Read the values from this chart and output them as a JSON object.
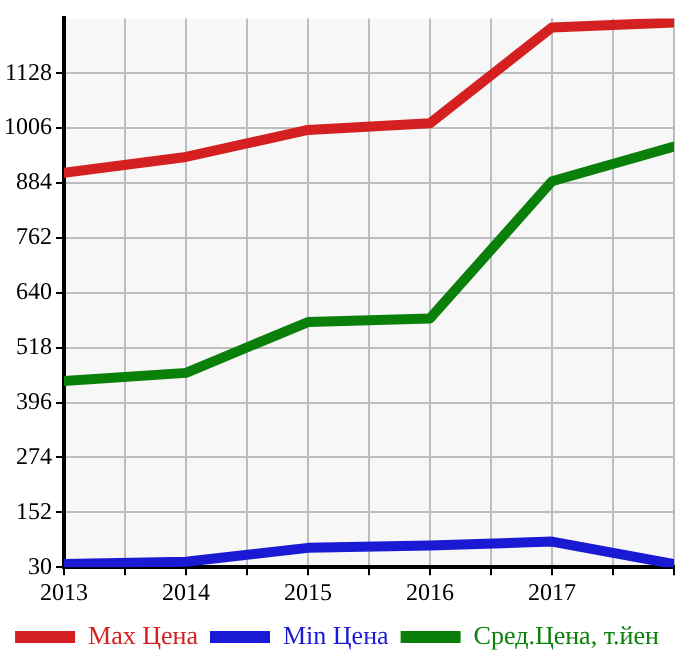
{
  "chart_data": {
    "type": "line",
    "x": [
      2013,
      2014,
      2015,
      2016,
      2017,
      2018
    ],
    "series": [
      {
        "name": "Max Цена",
        "color": "#d42020",
        "values": [
          907,
          942,
          1002,
          1017,
          1230,
          1241
        ]
      },
      {
        "name": "Min Цена",
        "color": "#1a1ad4",
        "values": [
          37,
          42,
          73,
          78,
          87,
          37
        ]
      },
      {
        "name": "Сред.Цена, т.йен",
        "color": "#0a800a",
        "values": [
          444,
          462,
          575,
          583,
          888,
          965
        ]
      }
    ],
    "xlim": [
      2013,
      2018
    ],
    "xticks": [
      2013,
      {
        "value": 2013.5,
        "label": null
      },
      2014,
      {
        "value": 2014.5,
        "label": null
      },
      2015,
      {
        "value": 2015.5,
        "label": null
      },
      2016,
      {
        "value": 2016.5,
        "label": null
      },
      2017,
      {
        "value": 2017.5,
        "label": null
      },
      {
        "value": 2018,
        "label": null
      }
    ],
    "ylim": [
      30,
      1250
    ],
    "yticks": [
      30,
      152,
      274,
      396,
      518,
      640,
      762,
      884,
      1006,
      1128
    ],
    "grid": true,
    "legend": "bottom",
    "marker": "none",
    "line_style": "solid"
  }
}
